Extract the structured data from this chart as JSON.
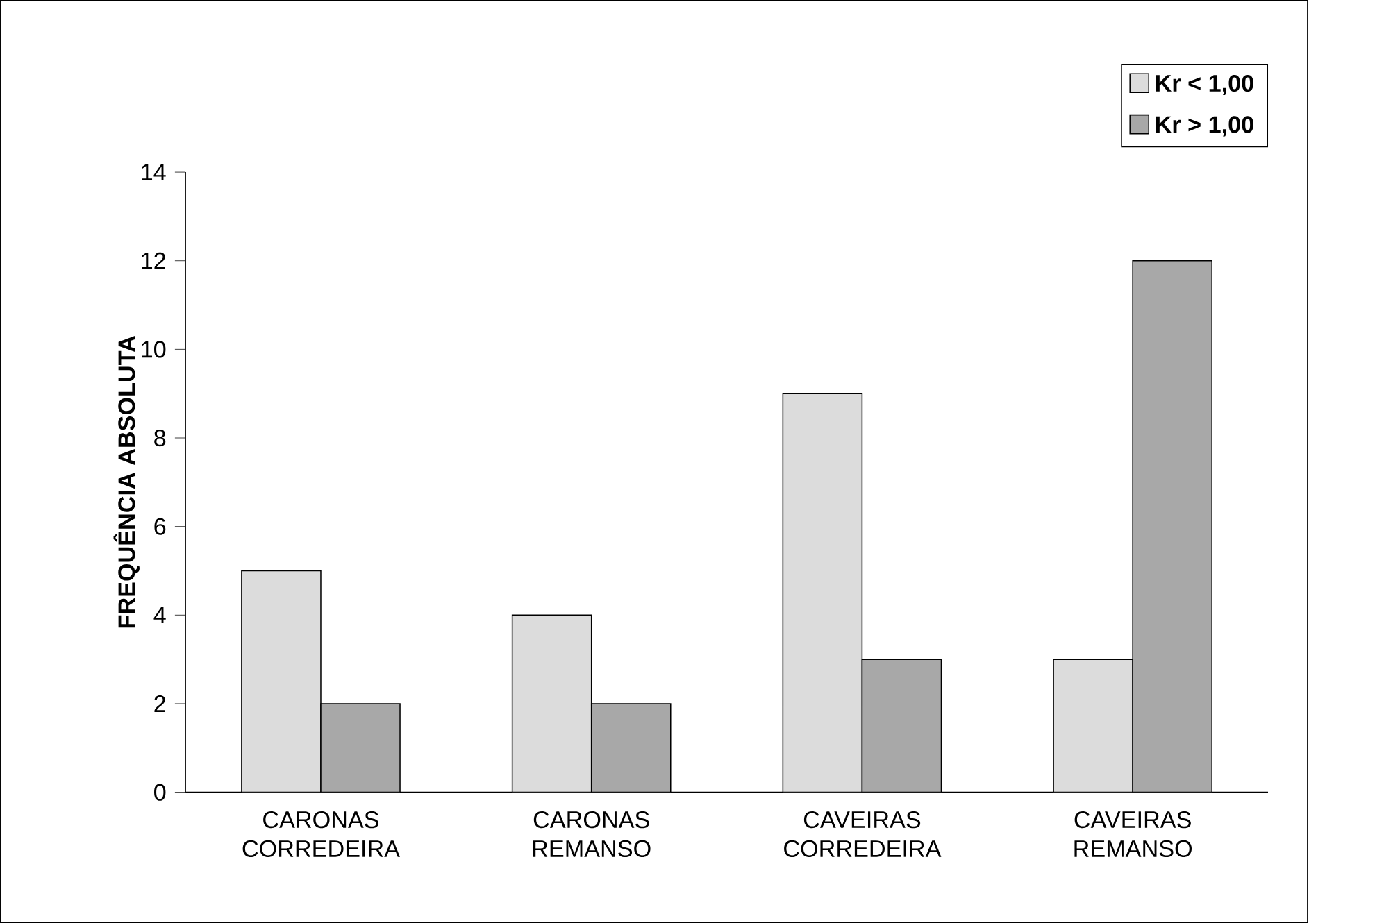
{
  "chart_data": {
    "type": "bar",
    "ylabel": "FREQUÊNCIA ABSOLUTA",
    "categories": [
      "CARONAS CORREDEIRA",
      "CARONAS REMANSO",
      "CAVEIRAS CORREDEIRA",
      "CAVEIRAS REMANSO"
    ],
    "series": [
      {
        "name": "Kr  < 1,00",
        "color": "#dcdcdc",
        "values": [
          5,
          4,
          9,
          3
        ]
      },
      {
        "name": "Kr  > 1,00",
        "color": "#a8a8a8",
        "values": [
          2,
          2,
          3,
          12
        ]
      }
    ],
    "ylim": [
      0,
      14
    ],
    "yticks": [
      0,
      2,
      4,
      6,
      8,
      10,
      12,
      14
    ],
    "grid": false,
    "legend": "top right"
  }
}
